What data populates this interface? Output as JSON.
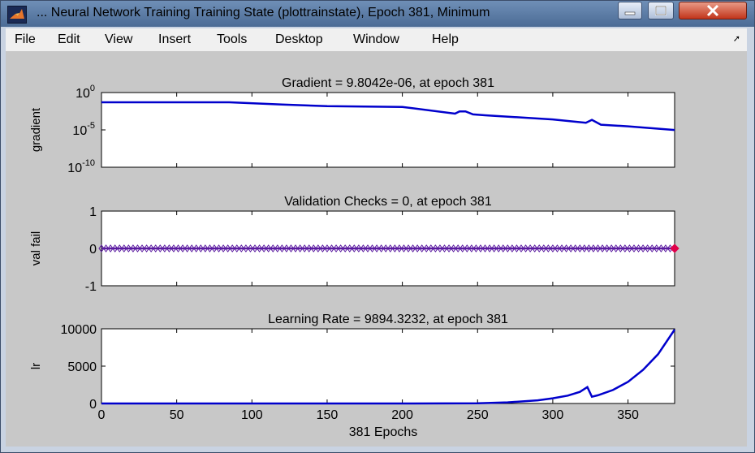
{
  "window": {
    "title": "... Neural Network Training Training State (plottrainstate), Epoch 381, Minimum"
  },
  "menu": [
    "File",
    "Edit",
    "View",
    "Insert",
    "Tools",
    "Desktop",
    "Window",
    "Help"
  ],
  "chart_data": [
    {
      "type": "line",
      "title": "Gradient = 9.8042e-06, at epoch 381",
      "ylabel": "gradient",
      "yscale": "log",
      "ylim": [
        1e-10,
        1
      ],
      "xlim": [
        0,
        381
      ],
      "yticks": [
        {
          "value": 1,
          "base": "10",
          "exp": "0"
        },
        {
          "value": 1e-05,
          "base": "10",
          "exp": "-5"
        },
        {
          "value": 1e-10,
          "base": "10",
          "exp": "-10"
        }
      ],
      "color": "#0000cc",
      "x": [
        0,
        50,
        85,
        120,
        150,
        200,
        235,
        238,
        242,
        247,
        255,
        300,
        322,
        326,
        332,
        350,
        381
      ],
      "y": [
        0.05,
        0.05,
        0.05,
        0.025,
        0.015,
        0.012,
        0.0015,
        0.003,
        0.003,
        0.0012,
        0.0009,
        0.00025,
        9e-05,
        0.00022,
        5e-05,
        3e-05,
        9.8e-06
      ]
    },
    {
      "type": "line",
      "title": "Validation Checks = 0, at epoch 381",
      "ylabel": "val fail",
      "ylim": [
        -1,
        1
      ],
      "xlim": [
        0,
        381
      ],
      "yticks": [
        -1,
        0,
        1
      ],
      "color": "#5a1aa0",
      "marker": "diamond",
      "x": [
        0,
        381
      ],
      "y": [
        0,
        0
      ]
    },
    {
      "type": "line",
      "title": "Learning Rate = 9894.3232, at epoch 381",
      "ylabel": "lr",
      "xlabel": "381 Epochs",
      "ylim": [
        0,
        10000
      ],
      "xlim": [
        0,
        381
      ],
      "yticks": [
        0,
        5000,
        10000
      ],
      "xticks": [
        0,
        50,
        100,
        150,
        200,
        250,
        300,
        350
      ],
      "color": "#0000cc",
      "x": [
        0,
        200,
        250,
        270,
        290,
        300,
        310,
        318,
        323,
        326,
        330,
        340,
        350,
        360,
        370,
        381
      ],
      "y": [
        0,
        3,
        30,
        150,
        420,
        700,
        1050,
        1550,
        2200,
        900,
        1100,
        1800,
        2900,
        4500,
        6600,
        9894
      ]
    }
  ]
}
